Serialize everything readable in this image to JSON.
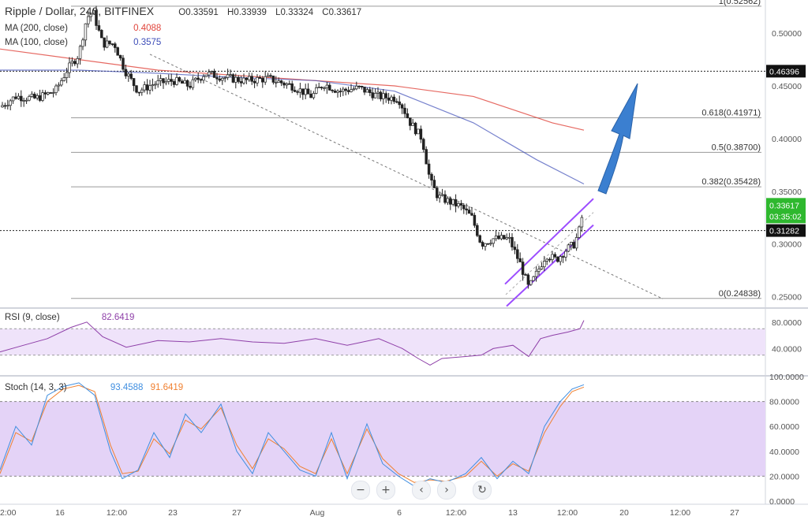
{
  "header": {
    "symbol": "Ripple / Dollar, 240, BITFINEX",
    "open_label": "O",
    "open": "0.33591",
    "high_label": "H",
    "high": "0.33939",
    "low_label": "L",
    "low": "0.33324",
    "close_label": "C",
    "close": "0.33617"
  },
  "indicators": {
    "ma200": {
      "label": "MA (200, close)",
      "value": "0.4088",
      "color": "#e0443b"
    },
    "ma100": {
      "label": "MA (100, close)",
      "value": "0.3575",
      "color": "#3d4db8"
    },
    "rsi": {
      "label": "RSI (9, close)",
      "value": "82.6419",
      "color": "#8e3fa8"
    },
    "stoch": {
      "label": "Stoch (14, 3, 3)",
      "k": "93.4588",
      "d": "91.6419",
      "k_color": "#3f8ee0",
      "d_color": "#f08030"
    }
  },
  "toolbar": {
    "minus": "−",
    "plus": "+",
    "left": "‹",
    "right": "›",
    "reset": "↻"
  },
  "chart_data": [
    {
      "type": "candlestick",
      "title": "Ripple / Dollar, 240, BITFINEX",
      "ylim": [
        0.24,
        0.53
      ],
      "y_ticks": [
        "0.50000",
        "0.45000",
        "0.40000",
        "0.35000",
        "0.30000",
        "0.25000"
      ],
      "y_tick_values": [
        0.5,
        0.45,
        0.4,
        0.35,
        0.3,
        0.25
      ],
      "x_ticks": [
        "2:00",
        "16",
        "12:00",
        "23",
        "27",
        "Aug",
        "6",
        "12:00",
        "13",
        "12:00",
        "20",
        "12:00",
        "27"
      ],
      "x_tick_values": [
        0,
        76,
        148,
        219,
        300,
        402,
        506,
        578,
        650,
        719,
        791,
        862,
        931
      ],
      "price_levels": [
        {
          "label": "0.46396",
          "value": 0.46396
        },
        {
          "label": "0.31282",
          "value": 0.31282
        }
      ],
      "last_price": {
        "label": "0.33617",
        "countdown": "03:35:02",
        "value": 0.33617
      },
      "fib_levels": [
        {
          "label": "1(0.52562)",
          "value": 0.52562
        },
        {
          "label": "0.618(0.41971)",
          "value": 0.41971
        },
        {
          "label": "0.5(0.38700)",
          "value": 0.387
        },
        {
          "label": "0.382(0.35428)",
          "value": 0.35428
        },
        {
          "label": "0(0.24838)",
          "value": 0.24838
        }
      ],
      "price_path": [
        [
          0,
          0.43
        ],
        [
          20,
          0.44
        ],
        [
          45,
          0.438
        ],
        [
          70,
          0.445
        ],
        [
          85,
          0.465
        ],
        [
          100,
          0.48
        ],
        [
          110,
          0.515
        ],
        [
          118,
          0.52
        ],
        [
          130,
          0.49
        ],
        [
          145,
          0.49
        ],
        [
          158,
          0.465
        ],
        [
          175,
          0.445
        ],
        [
          195,
          0.452
        ],
        [
          220,
          0.455
        ],
        [
          240,
          0.45
        ],
        [
          260,
          0.462
        ],
        [
          285,
          0.458
        ],
        [
          310,
          0.455
        ],
        [
          340,
          0.457
        ],
        [
          370,
          0.45
        ],
        [
          395,
          0.44
        ],
        [
          410,
          0.452
        ],
        [
          430,
          0.445
        ],
        [
          455,
          0.448
        ],
        [
          480,
          0.44
        ],
        [
          505,
          0.438
        ],
        [
          520,
          0.415
        ],
        [
          535,
          0.4
        ],
        [
          545,
          0.36
        ],
        [
          555,
          0.345
        ],
        [
          570,
          0.34
        ],
        [
          585,
          0.335
        ],
        [
          598,
          0.325
        ],
        [
          610,
          0.3
        ],
        [
          625,
          0.305
        ],
        [
          645,
          0.305
        ],
        [
          660,
          0.28
        ],
        [
          670,
          0.258
        ],
        [
          680,
          0.272
        ],
        [
          692,
          0.29
        ],
        [
          705,
          0.285
        ],
        [
          718,
          0.295
        ],
        [
          728,
          0.3
        ],
        [
          735,
          0.315
        ],
        [
          740,
          0.336
        ]
      ],
      "ma200_path": [
        [
          0,
          0.485
        ],
        [
          100,
          0.475
        ],
        [
          200,
          0.465
        ],
        [
          300,
          0.46
        ],
        [
          400,
          0.455
        ],
        [
          500,
          0.45
        ],
        [
          600,
          0.44
        ],
        [
          700,
          0.415
        ],
        [
          740,
          0.408
        ]
      ],
      "ma100_path": [
        [
          0,
          0.465
        ],
        [
          100,
          0.465
        ],
        [
          200,
          0.462
        ],
        [
          300,
          0.458
        ],
        [
          400,
          0.455
        ],
        [
          500,
          0.445
        ],
        [
          600,
          0.415
        ],
        [
          680,
          0.38
        ],
        [
          740,
          0.357
        ]
      ]
    },
    {
      "type": "line",
      "title": "RSI (9, close)",
      "ylim": [
        0,
        100
      ],
      "y_ticks": [
        "80.0000",
        "40.0000"
      ],
      "y_tick_values": [
        80,
        40
      ],
      "band": [
        30,
        70
      ],
      "series": [
        {
          "name": "RSI (9, close)",
          "values": [
            [
              0,
              35
            ],
            [
              30,
              45
            ],
            [
              60,
              55
            ],
            [
              90,
              72
            ],
            [
              110,
              80
            ],
            [
              130,
              58
            ],
            [
              160,
              42
            ],
            [
              200,
              52
            ],
            [
              240,
              50
            ],
            [
              280,
              55
            ],
            [
              320,
              50
            ],
            [
              360,
              48
            ],
            [
              400,
              55
            ],
            [
              440,
              45
            ],
            [
              480,
              55
            ],
            [
              510,
              40
            ],
            [
              530,
              25
            ],
            [
              545,
              15
            ],
            [
              560,
              25
            ],
            [
              590,
              28
            ],
            [
              610,
              30
            ],
            [
              625,
              40
            ],
            [
              650,
              45
            ],
            [
              670,
              28
            ],
            [
              685,
              55
            ],
            [
              700,
              60
            ],
            [
              720,
              65
            ],
            [
              735,
              70
            ],
            [
              740,
              82.6
            ]
          ]
        }
      ]
    },
    {
      "type": "line",
      "title": "Stoch (14, 3, 3)",
      "ylim": [
        0,
        100
      ],
      "y_ticks": [
        "100.0000",
        "80.0000",
        "60.0000",
        "40.0000",
        "20.0000",
        "0.0000"
      ],
      "y_tick_values": [
        100,
        80,
        60,
        40,
        20,
        0
      ],
      "band": [
        20,
        80
      ],
      "series": [
        {
          "name": "%K",
          "values": [
            [
              0,
              25
            ],
            [
              20,
              60
            ],
            [
              40,
              45
            ],
            [
              60,
              85
            ],
            [
              80,
              92
            ],
            [
              100,
              95
            ],
            [
              120,
              85
            ],
            [
              140,
              40
            ],
            [
              155,
              18
            ],
            [
              175,
              25
            ],
            [
              195,
              55
            ],
            [
              215,
              35
            ],
            [
              235,
              70
            ],
            [
              255,
              55
            ],
            [
              280,
              78
            ],
            [
              300,
              40
            ],
            [
              320,
              22
            ],
            [
              340,
              55
            ],
            [
              360,
              40
            ],
            [
              380,
              25
            ],
            [
              400,
              20
            ],
            [
              420,
              55
            ],
            [
              440,
              18
            ],
            [
              465,
              62
            ],
            [
              485,
              30
            ],
            [
              505,
              20
            ],
            [
              525,
              12
            ],
            [
              545,
              18
            ],
            [
              565,
              15
            ],
            [
              590,
              22
            ],
            [
              610,
              35
            ],
            [
              630,
              18
            ],
            [
              650,
              32
            ],
            [
              670,
              22
            ],
            [
              690,
              60
            ],
            [
              710,
              80
            ],
            [
              725,
              90
            ],
            [
              740,
              93.5
            ]
          ]
        },
        {
          "name": "%D",
          "values": [
            [
              0,
              22
            ],
            [
              20,
              55
            ],
            [
              40,
              48
            ],
            [
              60,
              80
            ],
            [
              80,
              90
            ],
            [
              100,
              93
            ],
            [
              120,
              88
            ],
            [
              140,
              45
            ],
            [
              155,
              22
            ],
            [
              175,
              24
            ],
            [
              195,
              50
            ],
            [
              215,
              38
            ],
            [
              235,
              65
            ],
            [
              255,
              58
            ],
            [
              280,
              75
            ],
            [
              300,
              45
            ],
            [
              320,
              26
            ],
            [
              340,
              50
            ],
            [
              360,
              42
            ],
            [
              380,
              28
            ],
            [
              400,
              22
            ],
            [
              420,
              50
            ],
            [
              440,
              22
            ],
            [
              465,
              58
            ],
            [
              485,
              34
            ],
            [
              505,
              22
            ],
            [
              525,
              15
            ],
            [
              545,
              17
            ],
            [
              565,
              16
            ],
            [
              590,
              20
            ],
            [
              610,
              32
            ],
            [
              630,
              20
            ],
            [
              650,
              30
            ],
            [
              670,
              24
            ],
            [
              690,
              55
            ],
            [
              710,
              76
            ],
            [
              725,
              88
            ],
            [
              740,
              91.6
            ]
          ]
        }
      ]
    }
  ]
}
